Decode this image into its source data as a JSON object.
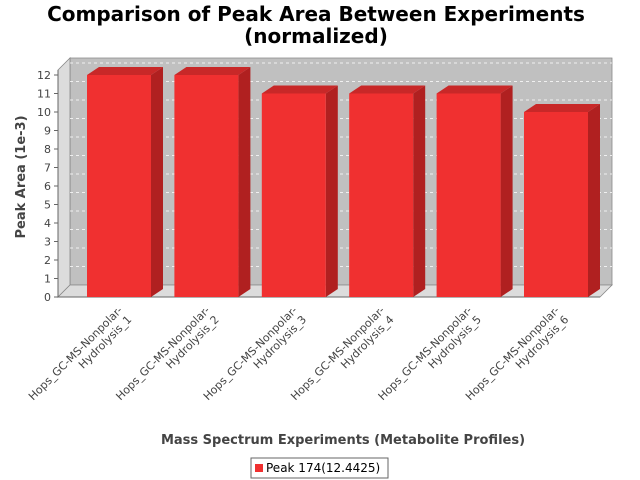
{
  "chart_data": {
    "type": "bar",
    "title_line1": "Comparison of Peak Area Between Experiments",
    "title_line2": "(normalized)",
    "xlabel": "Mass Spectrum Experiments (Metabolite Profiles)",
    "ylabel": "Peak Area (1e-3)",
    "categories": [
      [
        "Hops_GC-MS-Nonpolar-",
        "Hydrolysis_1"
      ],
      [
        "Hops_GC-MS-Nonpolar-",
        "Hydrolysis_2"
      ],
      [
        "Hops_GC-MS-Nonpolar-",
        "Hydrolysis_3"
      ],
      [
        "Hops_GC-MS-Nonpolar-",
        "Hydrolysis_4"
      ],
      [
        "Hops_GC-MS-Nonpolar-",
        "Hydrolysis_5"
      ],
      [
        "Hops_GC-MS-Nonpolar-",
        "Hydrolysis_6"
      ]
    ],
    "series": [
      {
        "name": "Peak 174(12.4425)",
        "values": [
          12,
          12,
          11,
          11,
          11,
          10
        ]
      }
    ],
    "ylim": [
      0,
      12
    ],
    "yticks": [
      "0",
      "1",
      "2",
      "3",
      "4",
      "5",
      "6",
      "7",
      "8",
      "9",
      "10",
      "11",
      "12"
    ],
    "grid": true,
    "legend": "bottom",
    "colors": {
      "bar": "#f03030",
      "bar_top": "#c82828",
      "bar_side": "#b02020",
      "plot_bg": "#c0c0c0",
      "wall": "#dcdcdc"
    }
  }
}
